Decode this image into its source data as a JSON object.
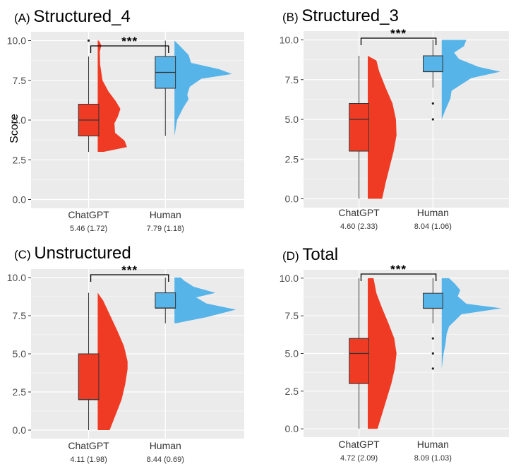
{
  "colors": {
    "chatgpt": "#f03b24",
    "human": "#56b4e9",
    "panel_bg": "#ebebeb",
    "grid": "#ffffff"
  },
  "ylabel": "Score",
  "chart_data": [
    {
      "type": "raincloud",
      "panel": "(A)",
      "title": "Structured_4",
      "ylim": [
        0,
        10
      ],
      "yticks": [
        "0.0",
        "2.5",
        "5.0",
        "7.5",
        "10.0"
      ],
      "significance": "***",
      "groups": [
        {
          "name": "ChatGPT",
          "stat": "5.46 (1.72)",
          "box": {
            "whisker_low": 3,
            "q1": 4,
            "median": 5,
            "q3": 6,
            "whisker_high": 9
          },
          "outliers": [
            10
          ],
          "density": [
            [
              3.0,
              0.2
            ],
            [
              3.3,
              0.98
            ],
            [
              3.7,
              0.9
            ],
            [
              4.2,
              0.58
            ],
            [
              4.8,
              0.56
            ],
            [
              5.2,
              0.67
            ],
            [
              5.7,
              0.76
            ],
            [
              6.2,
              0.6
            ],
            [
              6.8,
              0.36
            ],
            [
              7.5,
              0.16
            ],
            [
              8.5,
              0.08
            ],
            [
              9.3,
              0.07
            ],
            [
              9.7,
              0.12
            ],
            [
              10.0,
              0.04
            ]
          ]
        },
        {
          "name": "Human",
          "stat": "7.79 (1.18)",
          "box": {
            "whisker_low": 4,
            "q1": 7,
            "median": 8,
            "q3": 9,
            "whisker_high": 10
          },
          "outliers": [],
          "density": [
            [
              4.0,
              0.0
            ],
            [
              5.0,
              0.04
            ],
            [
              5.8,
              0.14
            ],
            [
              6.3,
              0.22
            ],
            [
              6.6,
              0.2
            ],
            [
              7.1,
              0.24
            ],
            [
              7.6,
              0.42
            ],
            [
              7.9,
              0.9
            ],
            [
              8.2,
              0.7
            ],
            [
              8.6,
              0.26
            ],
            [
              9.1,
              0.22
            ],
            [
              9.6,
              0.1
            ],
            [
              10.0,
              0.0
            ]
          ]
        }
      ]
    },
    {
      "type": "raincloud",
      "panel": "(B)",
      "title": "Structured_3",
      "ylim": [
        0,
        10
      ],
      "yticks": [
        "0.0",
        "2.5",
        "5.0",
        "7.5",
        "10.0"
      ],
      "significance": "***",
      "groups": [
        {
          "name": "ChatGPT",
          "stat": "4.60 (2.33)",
          "box": {
            "whisker_low": 0,
            "q1": 3,
            "median": 5,
            "q3": 6,
            "whisker_high": 9
          },
          "outliers": [],
          "density": [
            [
              0.0,
              0.5
            ],
            [
              1.0,
              0.62
            ],
            [
              2.0,
              0.76
            ],
            [
              3.0,
              0.9
            ],
            [
              4.0,
              1.0
            ],
            [
              5.0,
              0.98
            ],
            [
              6.0,
              0.86
            ],
            [
              7.0,
              0.62
            ],
            [
              8.0,
              0.4
            ],
            [
              8.7,
              0.3
            ],
            [
              9.0,
              0.0
            ]
          ]
        },
        {
          "name": "Human",
          "stat": "8.04 (1.06)",
          "box": {
            "whisker_low": 7,
            "q1": 8,
            "median": 8,
            "q3": 9,
            "whisker_high": 10
          },
          "outliers": [
            5,
            6
          ],
          "density": [
            [
              5.0,
              0.0
            ],
            [
              5.6,
              0.06
            ],
            [
              6.3,
              0.14
            ],
            [
              6.8,
              0.16
            ],
            [
              7.2,
              0.32
            ],
            [
              7.6,
              0.48
            ],
            [
              8.0,
              0.95
            ],
            [
              8.3,
              0.6
            ],
            [
              8.8,
              0.28
            ],
            [
              9.2,
              0.2
            ],
            [
              9.6,
              0.36
            ],
            [
              10.0,
              0.4
            ]
          ]
        }
      ]
    },
    {
      "type": "raincloud",
      "panel": "(C)",
      "title": "Unstructured",
      "ylim": [
        0,
        10
      ],
      "yticks": [
        "0.0",
        "2.5",
        "5.0",
        "7.5",
        "10.0"
      ],
      "significance": "***",
      "groups": [
        {
          "name": "ChatGPT",
          "stat": "4.11 (1.98)",
          "box": {
            "whisker_low": 0,
            "q1": 2,
            "median": 2,
            "q3": 5,
            "whisker_high": 9
          },
          "outliers": [],
          "density": [
            [
              0.0,
              0.4
            ],
            [
              1.0,
              0.6
            ],
            [
              2.0,
              0.8
            ],
            [
              3.0,
              0.92
            ],
            [
              4.0,
              1.0
            ],
            [
              4.5,
              1.0
            ],
            [
              5.5,
              0.88
            ],
            [
              6.5,
              0.66
            ],
            [
              7.5,
              0.42
            ],
            [
              8.5,
              0.18
            ],
            [
              9.0,
              0.0
            ]
          ]
        },
        {
          "name": "Human",
          "stat": "8.44 (0.69)",
          "box": {
            "whisker_low": 7,
            "q1": 8,
            "median": 8,
            "q3": 9,
            "whisker_high": 10
          },
          "outliers": [],
          "density": [
            [
              7.0,
              0.02
            ],
            [
              7.4,
              0.5
            ],
            [
              7.9,
              0.96
            ],
            [
              8.3,
              0.5
            ],
            [
              8.7,
              0.34
            ],
            [
              9.0,
              0.64
            ],
            [
              9.4,
              0.3
            ],
            [
              9.8,
              0.15
            ],
            [
              10.0,
              0.1
            ]
          ]
        }
      ]
    },
    {
      "type": "raincloud",
      "panel": "(D)",
      "title": "Total",
      "ylim": [
        0,
        10
      ],
      "yticks": [
        "0.0",
        "2.5",
        "5.0",
        "7.5",
        "10.0"
      ],
      "significance": "***",
      "groups": [
        {
          "name": "ChatGPT",
          "stat": "4.72 (2.09)",
          "box": {
            "whisker_low": 0,
            "q1": 3,
            "median": 5,
            "q3": 6,
            "whisker_high": 10
          },
          "outliers": [],
          "density": [
            [
              0.0,
              0.34
            ],
            [
              1.0,
              0.5
            ],
            [
              2.0,
              0.66
            ],
            [
              3.0,
              0.82
            ],
            [
              4.0,
              0.94
            ],
            [
              5.0,
              1.0
            ],
            [
              6.0,
              0.92
            ],
            [
              7.0,
              0.72
            ],
            [
              8.0,
              0.5
            ],
            [
              9.0,
              0.3
            ],
            [
              9.6,
              0.24
            ],
            [
              10.0,
              0.2
            ]
          ]
        },
        {
          "name": "Human",
          "stat": "8.09 (1.03)",
          "box": {
            "whisker_low": 7,
            "q1": 8,
            "median": 8,
            "q3": 9,
            "whisker_high": 10
          },
          "outliers": [
            4,
            5,
            6
          ],
          "density": [
            [
              4.0,
              0.0
            ],
            [
              5.0,
              0.03
            ],
            [
              5.6,
              0.06
            ],
            [
              6.3,
              0.08
            ],
            [
              6.8,
              0.12
            ],
            [
              7.2,
              0.22
            ],
            [
              7.6,
              0.32
            ],
            [
              8.0,
              0.97
            ],
            [
              8.3,
              0.4
            ],
            [
              8.8,
              0.26
            ],
            [
              9.2,
              0.3
            ],
            [
              9.6,
              0.22
            ],
            [
              10.0,
              0.12
            ]
          ]
        }
      ]
    }
  ]
}
